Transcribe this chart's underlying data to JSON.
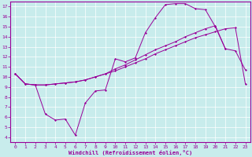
{
  "xlabel": "Windchill (Refroidissement éolien,°C)",
  "bg_color": "#c8ecec",
  "line_color": "#990099",
  "grid_color": "#ffffff",
  "spine_color": "#660066",
  "xlim": [
    0,
    23
  ],
  "ylim": [
    4,
    17
  ],
  "xticks": [
    0,
    1,
    2,
    3,
    4,
    5,
    6,
    7,
    8,
    9,
    10,
    11,
    12,
    13,
    14,
    15,
    16,
    17,
    18,
    19,
    20,
    21,
    22,
    23
  ],
  "yticks": [
    4,
    5,
    6,
    7,
    8,
    9,
    10,
    11,
    12,
    13,
    14,
    15,
    16,
    17
  ],
  "line1_x": [
    0,
    1,
    2,
    3,
    4,
    5,
    6,
    7,
    8,
    9,
    10,
    11,
    12,
    13,
    14,
    15,
    16,
    17,
    18,
    19,
    20,
    21,
    22,
    23
  ],
  "line1_y": [
    10.3,
    9.3,
    9.2,
    9.2,
    9.3,
    9.4,
    9.5,
    9.7,
    10.0,
    10.3,
    10.6,
    11.0,
    11.4,
    11.8,
    12.3,
    12.7,
    13.1,
    13.5,
    13.9,
    14.2,
    14.5,
    14.8,
    14.9,
    9.3
  ],
  "line2_x": [
    0,
    1,
    2,
    3,
    4,
    5,
    6,
    7,
    8,
    9,
    10,
    11,
    12,
    13,
    14,
    15,
    16,
    17,
    18,
    19,
    20,
    21,
    22,
    23
  ],
  "line2_y": [
    10.3,
    9.3,
    9.2,
    6.3,
    5.7,
    5.8,
    4.2,
    7.4,
    8.6,
    8.7,
    11.8,
    11.5,
    11.9,
    14.4,
    15.9,
    17.2,
    17.3,
    17.3,
    16.8,
    16.7,
    15.0,
    12.8,
    12.6,
    10.7
  ],
  "line3_x": [
    0,
    1,
    2,
    3,
    4,
    5,
    6,
    7,
    8,
    9,
    10,
    11,
    12,
    13,
    14,
    15,
    16,
    17,
    18,
    19,
    20,
    21
  ],
  "line3_y": [
    10.3,
    9.3,
    9.2,
    9.2,
    9.3,
    9.4,
    9.5,
    9.7,
    10.0,
    10.3,
    10.8,
    11.2,
    11.7,
    12.2,
    12.7,
    13.1,
    13.5,
    14.0,
    14.4,
    14.8,
    15.1,
    12.8
  ]
}
